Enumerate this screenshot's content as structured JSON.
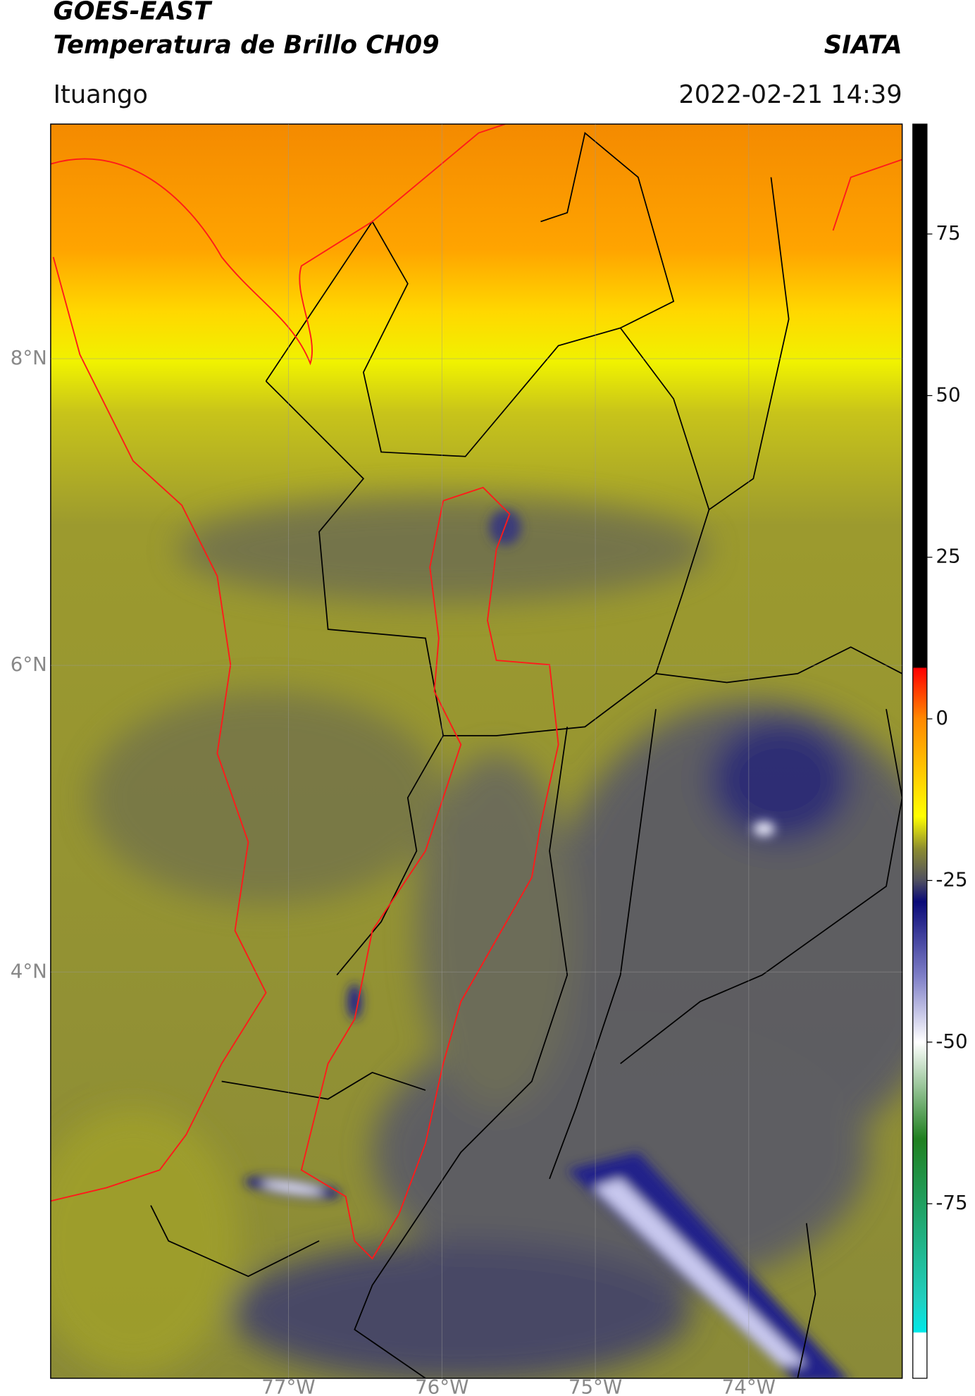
{
  "header": {
    "satellite": "GOES-EAST",
    "product": "Temperatura de Brillo CH09",
    "agency": "SIATA",
    "location": "Ituango",
    "datetime": "2022-02-21 14:39"
  },
  "map": {
    "latlim": [
      1.35,
      9.53
    ],
    "lonlim": [
      -78.55,
      -73.0
    ],
    "latticks": [
      {
        "value": 8,
        "label": "8°N"
      },
      {
        "value": 6,
        "label": "6°N"
      },
      {
        "value": 4,
        "label": "4°N"
      }
    ],
    "lonticks": [
      {
        "value": -77,
        "label": "77°W"
      },
      {
        "value": -76,
        "label": "76°W"
      },
      {
        "value": -75,
        "label": "75°W"
      },
      {
        "value": -74,
        "label": "74°W"
      }
    ],
    "grid": true
  },
  "colorbar": {
    "lim": [
      -102,
      92
    ],
    "ticks": [
      75,
      50,
      25,
      0,
      -25,
      -50,
      -75
    ]
  }
}
